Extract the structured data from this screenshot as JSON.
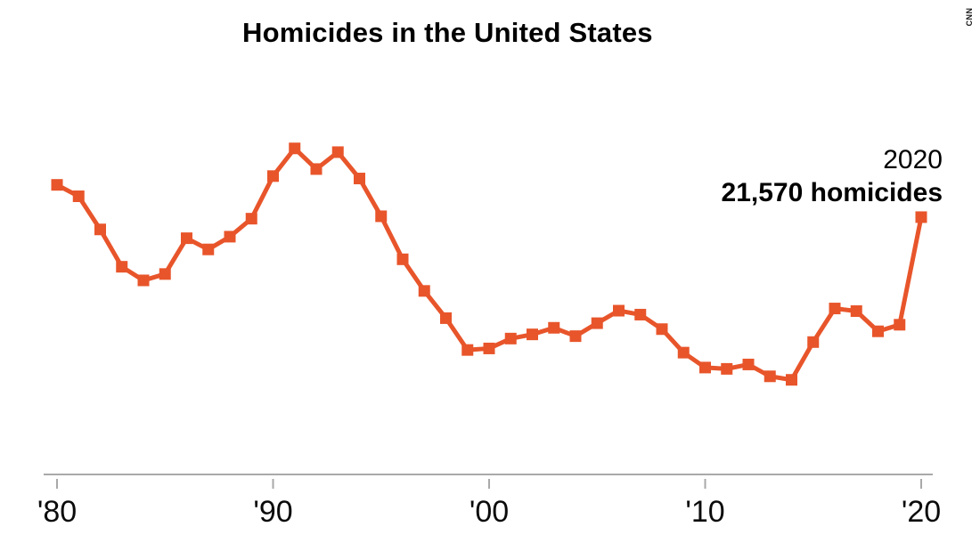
{
  "page": {
    "background_color": "#ffffff"
  },
  "header": {
    "title": "Homicides in the United States"
  },
  "annotation": {
    "year_label": "2020",
    "value_label": "21,570 homicides"
  },
  "attribution": {
    "source": "CNN"
  },
  "chart_data": {
    "type": "line",
    "title": "Homicides in the United States",
    "series_name": "Homicides",
    "x": [
      1980,
      1981,
      1982,
      1983,
      1984,
      1985,
      1986,
      1987,
      1988,
      1989,
      1990,
      1991,
      1992,
      1993,
      1994,
      1995,
      1996,
      1997,
      1998,
      1999,
      2000,
      2001,
      2002,
      2003,
      2004,
      2005,
      2006,
      2007,
      2008,
      2009,
      2010,
      2011,
      2012,
      2013,
      2014,
      2015,
      2016,
      2017,
      2018,
      2019,
      2020
    ],
    "values": [
      23040,
      22520,
      21010,
      19310,
      18690,
      18980,
      20610,
      20100,
      20680,
      21500,
      23440,
      24700,
      23760,
      24530,
      23330,
      21610,
      19650,
      18210,
      16970,
      15520,
      15590,
      16040,
      16230,
      16530,
      16150,
      16740,
      17310,
      17130,
      16470,
      15400,
      14720,
      14660,
      14860,
      14320,
      14160,
      15880,
      17410,
      17290,
      16370,
      16670,
      21570
    ],
    "xlabel": "",
    "ylabel": "",
    "xlim": [
      1980,
      2020
    ],
    "ylim": [
      13500,
      25500
    ],
    "x_tick_years": [
      1980,
      1990,
      2000,
      2010,
      2020
    ],
    "x_tick_labels": [
      "'80",
      "'90",
      "'00",
      "'10",
      "'20"
    ],
    "grid": false,
    "legend": "none",
    "marker": "square",
    "line_color": "#E8552B",
    "axis_color": "#A9A9A9",
    "tick_label_color": "#0b0b0b",
    "annotation_point": {
      "year": 2020,
      "value": 21570
    }
  }
}
